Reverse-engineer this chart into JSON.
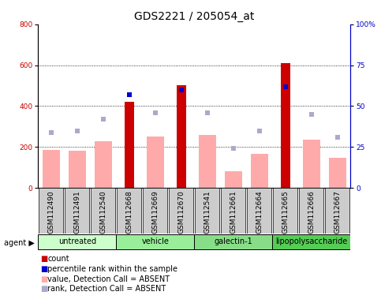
{
  "title": "GDS2221 / 205054_at",
  "samples": [
    "GSM112490",
    "GSM112491",
    "GSM112540",
    "GSM112668",
    "GSM112669",
    "GSM112670",
    "GSM112541",
    "GSM112661",
    "GSM112664",
    "GSM112665",
    "GSM112666",
    "GSM112667"
  ],
  "groups": [
    {
      "name": "untreated",
      "count": 3,
      "color": "#ccffcc"
    },
    {
      "name": "vehicle",
      "count": 3,
      "color": "#99ee99"
    },
    {
      "name": "galectin-1",
      "count": 3,
      "color": "#88dd88"
    },
    {
      "name": "lipopolysaccharide",
      "count": 3,
      "color": "#55cc55"
    }
  ],
  "count_values": [
    0,
    0,
    0,
    420,
    0,
    500,
    0,
    0,
    0,
    610,
    0,
    0
  ],
  "percentile_rank_values": [
    0,
    0,
    0,
    57,
    0,
    60,
    0,
    0,
    0,
    62,
    0,
    0
  ],
  "absent_value_values": [
    185,
    182,
    228,
    0,
    253,
    0,
    260,
    80,
    165,
    0,
    237,
    148
  ],
  "absent_rank_values": [
    34,
    35,
    42,
    0,
    46,
    0,
    46,
    24,
    35,
    0,
    45,
    31
  ],
  "ylim_left": [
    0,
    800
  ],
  "ylim_right": [
    0,
    100
  ],
  "yticks_left": [
    0,
    200,
    400,
    600,
    800
  ],
  "yticks_right": [
    0,
    25,
    50,
    75,
    100
  ],
  "gridlines": [
    200,
    400,
    600
  ],
  "count_color": "#cc0000",
  "percentile_rank_color": "#0000cc",
  "absent_value_color": "#ffaaaa",
  "absent_rank_color": "#aaaacc",
  "background_color": "#ffffff",
  "tick_bg_color": "#cccccc",
  "title_fontsize": 10,
  "tick_fontsize": 6.5,
  "legend_fontsize": 7,
  "group_fontsize": 7
}
